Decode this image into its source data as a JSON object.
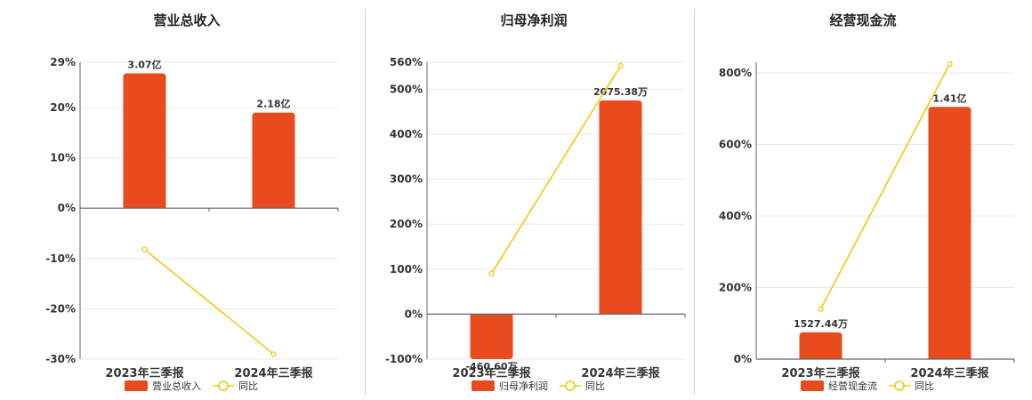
{
  "colors": {
    "bar": "#e84c1e",
    "line": "#f2c811",
    "grid": "#e8e8e8",
    "axis": "#666666"
  },
  "legend": {
    "line_label": "同比"
  },
  "chart_data": [
    {
      "type": "bar",
      "title": "营业总收入",
      "categories": [
        "2023年三季报",
        "2024年三季报"
      ],
      "series": [
        {
          "name": "营业总收入",
          "type": "bar",
          "values": [
            26.8,
            19.0
          ],
          "labels": [
            "3.07亿",
            "2.18亿"
          ]
        },
        {
          "name": "同比",
          "type": "line",
          "values": [
            -8.2,
            -29.0
          ]
        }
      ],
      "ylim": [
        -30,
        29
      ],
      "yticks": [
        29,
        20,
        10,
        0,
        -10,
        -20,
        -30
      ],
      "ytick_labels": [
        "29%",
        "20%",
        "10%",
        "0%",
        "-10%",
        "-20%",
        "-30%"
      ],
      "grid": true,
      "legend_position": "bottom"
    },
    {
      "type": "bar",
      "title": "归母净利润",
      "categories": [
        "2023年三季报",
        "2024年三季报"
      ],
      "series": [
        {
          "name": "归母净利润",
          "type": "bar",
          "values": [
            -100,
            475
          ],
          "labels": [
            "-460.60万",
            "2075.38万"
          ]
        },
        {
          "name": "同比",
          "type": "line",
          "values": [
            90,
            552
          ]
        }
      ],
      "ylim": [
        -100,
        560
      ],
      "yticks": [
        560,
        500,
        400,
        300,
        200,
        100,
        0,
        -100
      ],
      "ytick_labels": [
        "560%",
        "500%",
        "400%",
        "300%",
        "200%",
        "100%",
        "0%",
        "-100%"
      ],
      "grid": true,
      "legend_position": "bottom"
    },
    {
      "type": "bar",
      "title": "经营现金流",
      "categories": [
        "2023年三季报",
        "2024年三季报"
      ],
      "series": [
        {
          "name": "经营现金流",
          "type": "bar",
          "values": [
            75,
            705
          ],
          "labels": [
            "1527.44万",
            "1.41亿"
          ]
        },
        {
          "name": "同比",
          "type": "line",
          "values": [
            140,
            825
          ]
        }
      ],
      "ylim": [
        0,
        830
      ],
      "yticks": [
        800,
        600,
        400,
        200,
        0
      ],
      "ytick_labels": [
        "800%",
        "600%",
        "400%",
        "200%",
        "0%"
      ],
      "grid": true,
      "legend_position": "bottom"
    }
  ]
}
